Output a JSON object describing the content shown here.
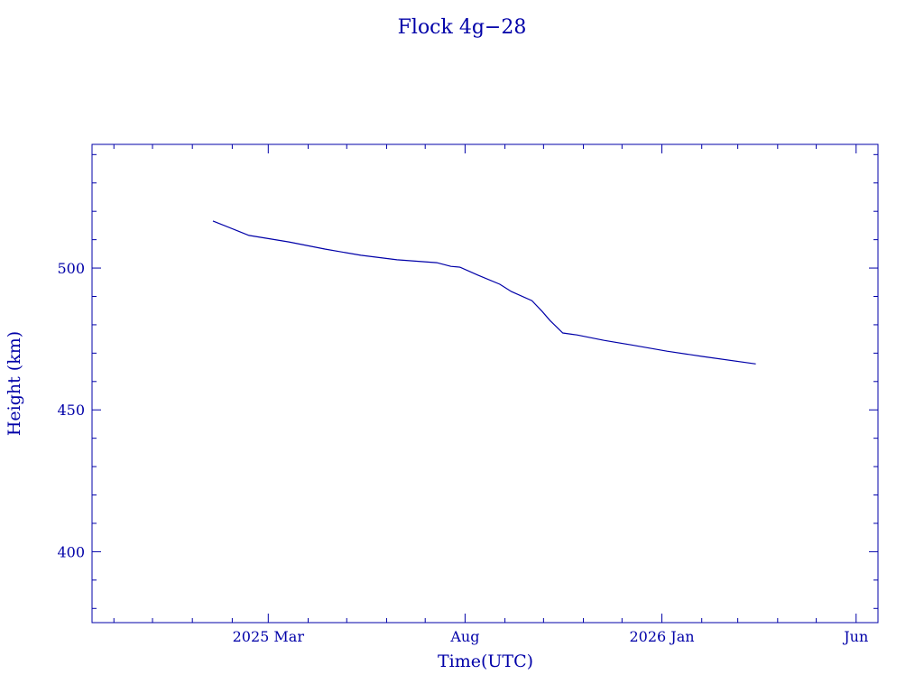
{
  "chart_data": {
    "type": "line",
    "title": "Flock 4g−28",
    "xlabel": "Time(UTC)",
    "ylabel": "Height (km)",
    "xlim": [
      "2024-10-15",
      "2026-06-18"
    ],
    "ylim": [
      375,
      543.6
    ],
    "x_major_ticks": [
      {
        "date": "2025-03-01",
        "label": "2025 Mar"
      },
      {
        "date": "2025-08-01",
        "label": "Aug"
      },
      {
        "date": "2026-01-01",
        "label": "2026 Jan"
      },
      {
        "date": "2026-06-01",
        "label": "Jun"
      }
    ],
    "x_minor_interval": "month",
    "y_major_ticks": [
      400,
      450,
      500
    ],
    "y_minor_step": 10,
    "grid": false,
    "color": "#0000a8",
    "series": [
      {
        "name": "Height",
        "x": [
          "2025-01-17",
          "2025-02-14",
          "2025-03-17",
          "2025-04-14",
          "2025-05-12",
          "2025-06-09",
          "2025-07-10",
          "2025-07-21",
          "2025-07-28",
          "2025-08-11",
          "2025-08-28",
          "2025-09-06",
          "2025-09-22",
          "2025-09-30",
          "2025-10-06",
          "2025-10-16",
          "2025-10-27",
          "2025-11-17",
          "2025-12-08",
          "2026-01-05",
          "2026-02-02",
          "2026-03-15"
        ],
        "y": [
          516.6,
          511.5,
          509.2,
          506.7,
          504.5,
          502.9,
          501.9,
          500.6,
          500.3,
          497.5,
          494.3,
          491.7,
          488.5,
          484.7,
          481.5,
          477.1,
          476.4,
          474.5,
          472.9,
          470.7,
          468.8,
          466.2
        ]
      }
    ]
  }
}
